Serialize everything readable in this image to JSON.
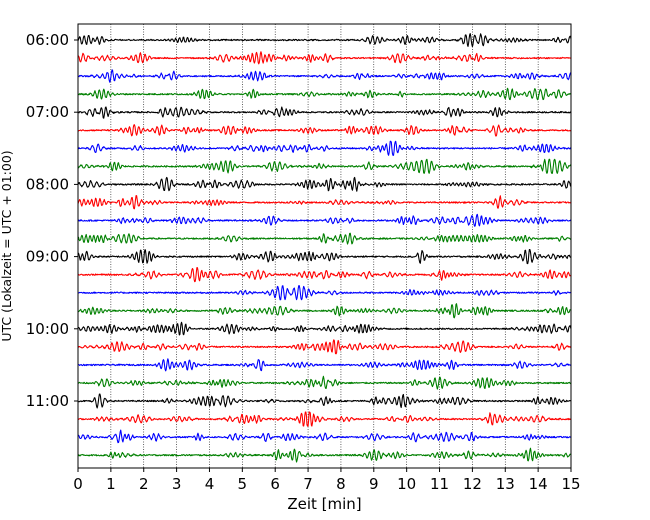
{
  "chart_data": {
    "type": "line",
    "title": "",
    "xlabel": "Zeit  [min]",
    "ylabel": "UTC (Lokalzeit = UTC + 01:00)",
    "xlim": [
      0,
      15
    ],
    "x_ticks": [
      "0",
      "1",
      "2",
      "3",
      "4",
      "5",
      "6",
      "7",
      "8",
      "9",
      "10",
      "11",
      "12",
      "13",
      "14",
      "15"
    ],
    "y_ticks": [
      {
        "label": "06:00",
        "trace": 0
      },
      {
        "label": "07:00",
        "trace": 4
      },
      {
        "label": "08:00",
        "trace": 8
      },
      {
        "label": "09:00",
        "trace": 12
      },
      {
        "label": "10:00",
        "trace": 16
      },
      {
        "label": "11:00",
        "trace": 20
      }
    ],
    "trace_interval_minutes": 15,
    "grid": "vertical dotted at each minute",
    "trace_colors": [
      "#000000",
      "#ff0000",
      "#0000ff",
      "#008000"
    ],
    "series": [
      {
        "start": "06:00"
      },
      {
        "start": "06:15"
      },
      {
        "start": "06:30"
      },
      {
        "start": "06:45"
      },
      {
        "start": "07:00"
      },
      {
        "start": "07:15"
      },
      {
        "start": "07:30"
      },
      {
        "start": "07:45"
      },
      {
        "start": "08:00"
      },
      {
        "start": "08:15"
      },
      {
        "start": "08:30"
      },
      {
        "start": "08:45"
      },
      {
        "start": "09:00"
      },
      {
        "start": "09:15"
      },
      {
        "start": "09:30"
      },
      {
        "start": "09:45"
      },
      {
        "start": "10:00"
      },
      {
        "start": "10:15"
      },
      {
        "start": "10:30"
      },
      {
        "start": "10:45"
      },
      {
        "start": "11:00"
      },
      {
        "start": "11:15"
      },
      {
        "start": "11:30"
      },
      {
        "start": "11:45"
      }
    ]
  }
}
